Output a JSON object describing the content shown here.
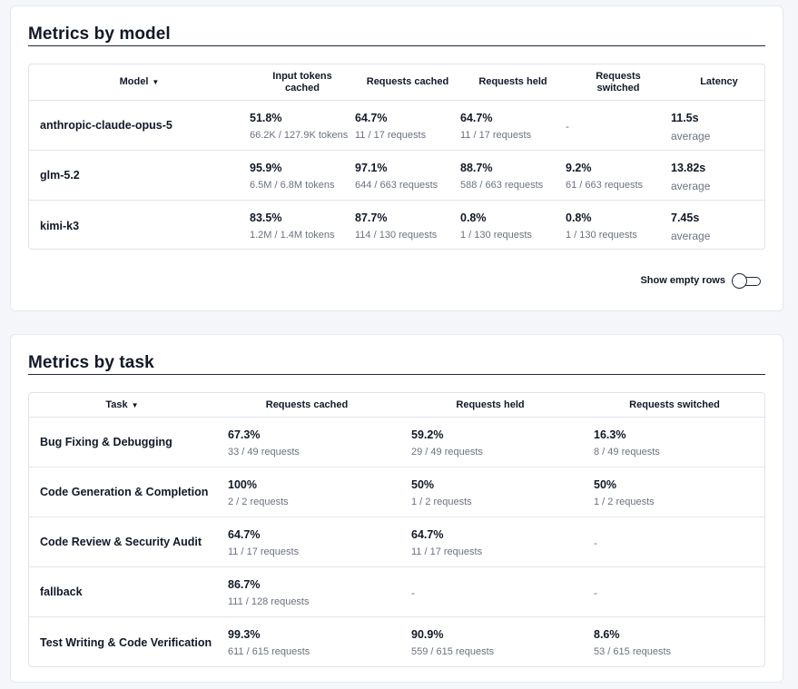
{
  "model_section": {
    "title": "Metrics by model",
    "headers": {
      "model": "Model",
      "input_tokens": "Input tokens cached",
      "requests_cached": "Requests cached",
      "requests_held": "Requests held",
      "requests_switched": "Requests switched",
      "latency": "Latency"
    },
    "rows": [
      {
        "name": "anthropic-claude-opus-5",
        "input_tokens": {
          "pct": "51.8%",
          "detail": "66.2K / 127.9K tokens"
        },
        "cached": {
          "pct": "64.7%",
          "detail": "11 / 17 requests"
        },
        "held": {
          "pct": "64.7%",
          "detail": "11 / 17 requests"
        },
        "switched": {
          "pct": "-",
          "detail": ""
        },
        "latency": {
          "value": "11.5s",
          "detail": "average"
        }
      },
      {
        "name": "glm-5.2",
        "input_tokens": {
          "pct": "95.9%",
          "detail": "6.5M / 6.8M tokens"
        },
        "cached": {
          "pct": "97.1%",
          "detail": "644 / 663 requests"
        },
        "held": {
          "pct": "88.7%",
          "detail": "588 / 663 requests"
        },
        "switched": {
          "pct": "9.2%",
          "detail": "61 / 663 requests"
        },
        "latency": {
          "value": "13.82s",
          "detail": "average"
        }
      },
      {
        "name": "kimi-k3",
        "input_tokens": {
          "pct": "83.5%",
          "detail": "1.2M / 1.4M tokens"
        },
        "cached": {
          "pct": "87.7%",
          "detail": "114 / 130 requests"
        },
        "held": {
          "pct": "0.8%",
          "detail": "1 / 130 requests"
        },
        "switched": {
          "pct": "0.8%",
          "detail": "1 / 130 requests"
        },
        "latency": {
          "value": "7.45s",
          "detail": "average"
        }
      }
    ],
    "toggle_label": "Show empty rows",
    "toggle_on": false
  },
  "task_section": {
    "title": "Metrics by task",
    "headers": {
      "task": "Task",
      "requests_cached": "Requests cached",
      "requests_held": "Requests held",
      "requests_switched": "Requests switched"
    },
    "rows": [
      {
        "name": "Bug Fixing & Debugging",
        "cached": {
          "pct": "67.3%",
          "detail": "33 / 49 requests"
        },
        "held": {
          "pct": "59.2%",
          "detail": "29 / 49 requests"
        },
        "switched": {
          "pct": "16.3%",
          "detail": "8 / 49 requests"
        }
      },
      {
        "name": "Code Generation & Completion",
        "cached": {
          "pct": "100%",
          "detail": "2 / 2 requests"
        },
        "held": {
          "pct": "50%",
          "detail": "1 / 2 requests"
        },
        "switched": {
          "pct": "50%",
          "detail": "1 / 2 requests"
        }
      },
      {
        "name": "Code Review & Security Audit",
        "cached": {
          "pct": "64.7%",
          "detail": "11 / 17 requests"
        },
        "held": {
          "pct": "64.7%",
          "detail": "11 / 17 requests"
        },
        "switched": {
          "pct": "-",
          "detail": ""
        }
      },
      {
        "name": "fallback",
        "cached": {
          "pct": "86.7%",
          "detail": "111 / 128 requests"
        },
        "held": {
          "pct": "-",
          "detail": ""
        },
        "switched": {
          "pct": "-",
          "detail": ""
        }
      },
      {
        "name": "Test Writing & Code Verification",
        "cached": {
          "pct": "99.3%",
          "detail": "611 / 615 requests"
        },
        "held": {
          "pct": "90.9%",
          "detail": "559 / 615 requests"
        },
        "switched": {
          "pct": "8.6%",
          "detail": "53 / 615 requests"
        }
      }
    ]
  }
}
